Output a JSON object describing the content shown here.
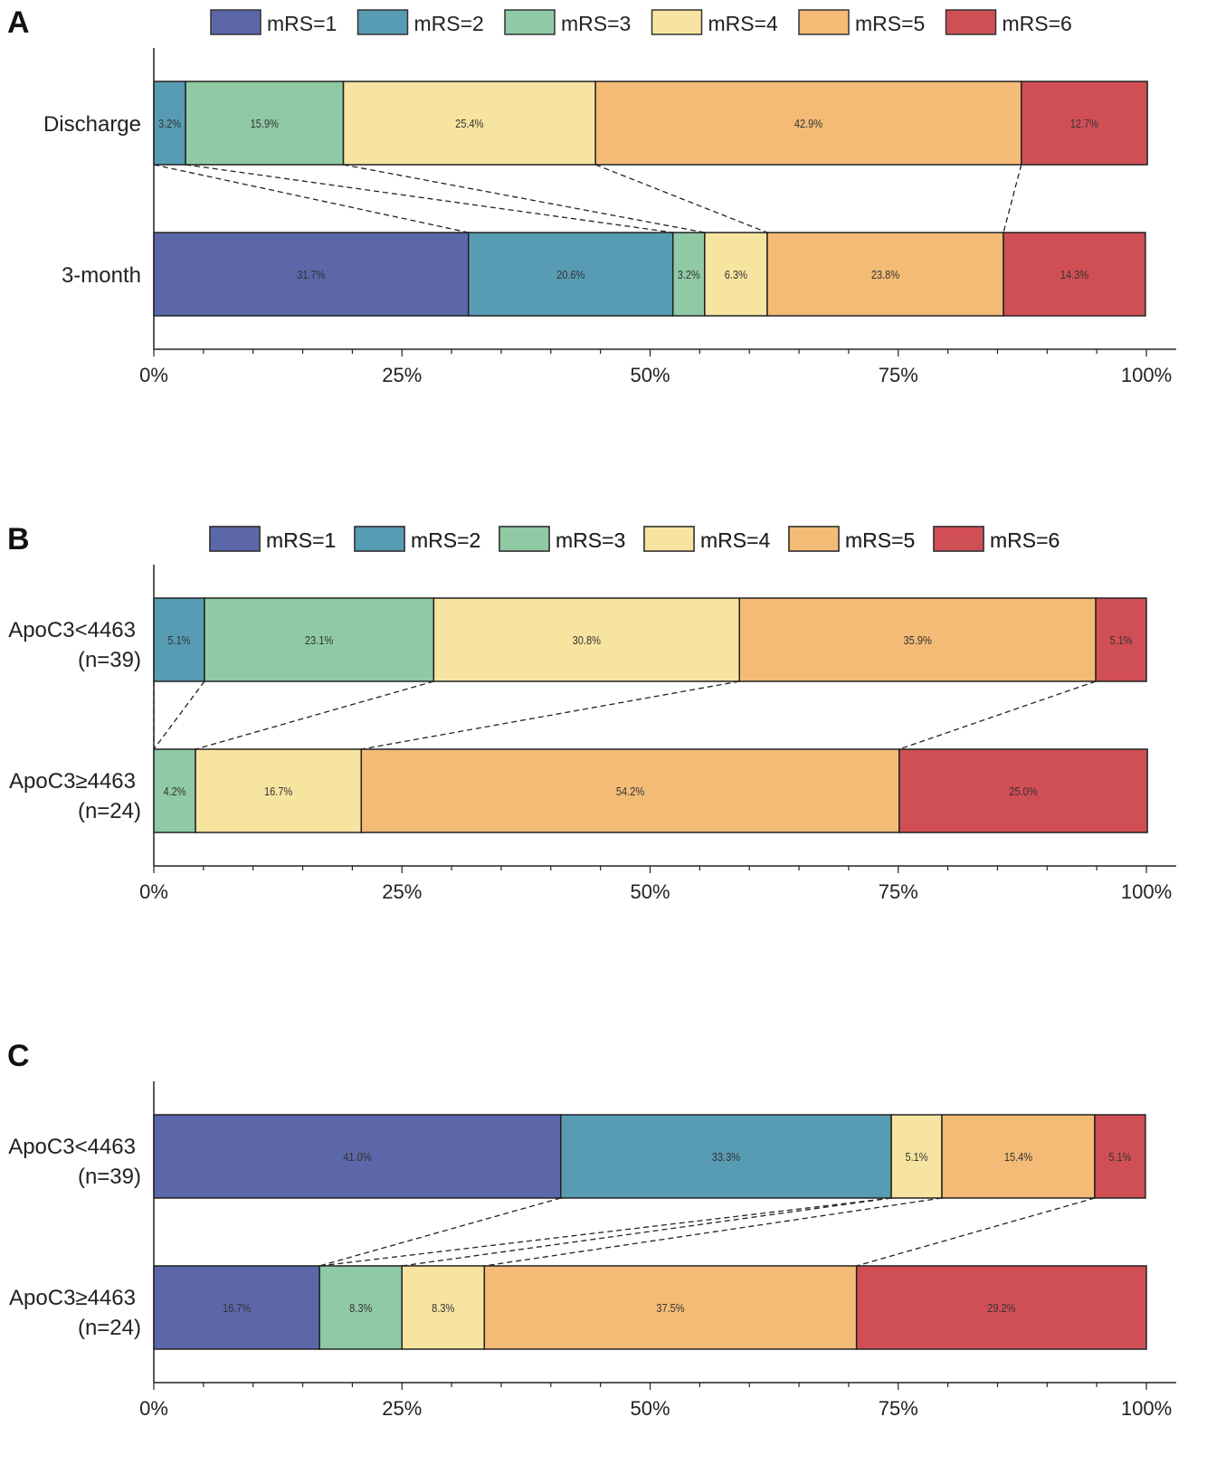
{
  "chart_data": [
    {
      "type": "bar",
      "stacked": "horizontal-100",
      "panel_label": "A",
      "legend": [
        "mRS=1",
        "mRS=2",
        "mRS=3",
        "mRS=4",
        "mRS=5",
        "mRS=6"
      ],
      "legend_position": "top",
      "categories": [
        [
          "Discharge"
        ],
        [
          "3-month"
        ]
      ],
      "values": [
        [
          0,
          3.2,
          15.9,
          25.4,
          42.9,
          12.7
        ],
        [
          31.7,
          20.6,
          3.2,
          6.3,
          23.8,
          14.3
        ]
      ],
      "data_labels": [
        [
          "",
          "3.2%",
          "15.9%",
          "25.4%",
          "42.9%",
          "12.7%"
        ],
        [
          "31.7%",
          "20.6%",
          "3.2%",
          "6.3%",
          "23.8%",
          "14.3%"
        ]
      ],
      "xticks": [
        "0%",
        "25%",
        "50%",
        "75%",
        "100%"
      ],
      "xlim": [
        0,
        100
      ]
    },
    {
      "type": "bar",
      "stacked": "horizontal-100",
      "panel_label": "B",
      "legend": [
        "mRS=1",
        "mRS=2",
        "mRS=3",
        "mRS=4",
        "mRS=5",
        "mRS=6"
      ],
      "legend_position": "top",
      "categories": [
        [
          "ApoC3<4463",
          "(n=39)"
        ],
        [
          "ApoC3≥4463",
          "(n=24)"
        ]
      ],
      "values": [
        [
          0,
          5.1,
          23.1,
          30.8,
          35.9,
          5.1
        ],
        [
          0,
          0,
          4.2,
          16.7,
          54.2,
          25.0
        ]
      ],
      "data_labels": [
        [
          "",
          "5.1%",
          "23.1%",
          "30.8%",
          "35.9%",
          "5.1%"
        ],
        [
          "",
          "",
          "4.2%",
          "16.7%",
          "54.2%",
          "25.0%"
        ]
      ],
      "xticks": [
        "0%",
        "25%",
        "50%",
        "75%",
        "100%"
      ],
      "xlim": [
        0,
        100
      ]
    },
    {
      "type": "bar",
      "stacked": "horizontal-100",
      "panel_label": "C",
      "legend": [
        "mRS=1",
        "mRS=2",
        "mRS=3",
        "mRS=4",
        "mRS=5",
        "mRS=6"
      ],
      "legend_position": "top",
      "categories": [
        [
          "ApoC3<4463",
          "(n=39)"
        ],
        [
          "ApoC3≥4463",
          "(n=24)"
        ]
      ],
      "values": [
        [
          41.0,
          33.3,
          0,
          5.1,
          15.4,
          5.1
        ],
        [
          16.7,
          0,
          8.3,
          8.3,
          37.5,
          29.2
        ]
      ],
      "data_labels": [
        [
          "41.0%",
          "33.3%",
          "",
          "5.1%",
          "15.4%",
          "5.1%"
        ],
        [
          "16.7%",
          "",
          "8.3%",
          "8.3%",
          "37.5%",
          "29.2%"
        ]
      ],
      "xticks": [
        "0%",
        "25%",
        "50%",
        "75%",
        "100%"
      ],
      "xlim": [
        0,
        100
      ]
    }
  ],
  "colors": [
    "#5b67a8",
    "#579cb3",
    "#8fcaa5",
    "#f7e4a0",
    "#f3bb76",
    "#d04f55"
  ]
}
